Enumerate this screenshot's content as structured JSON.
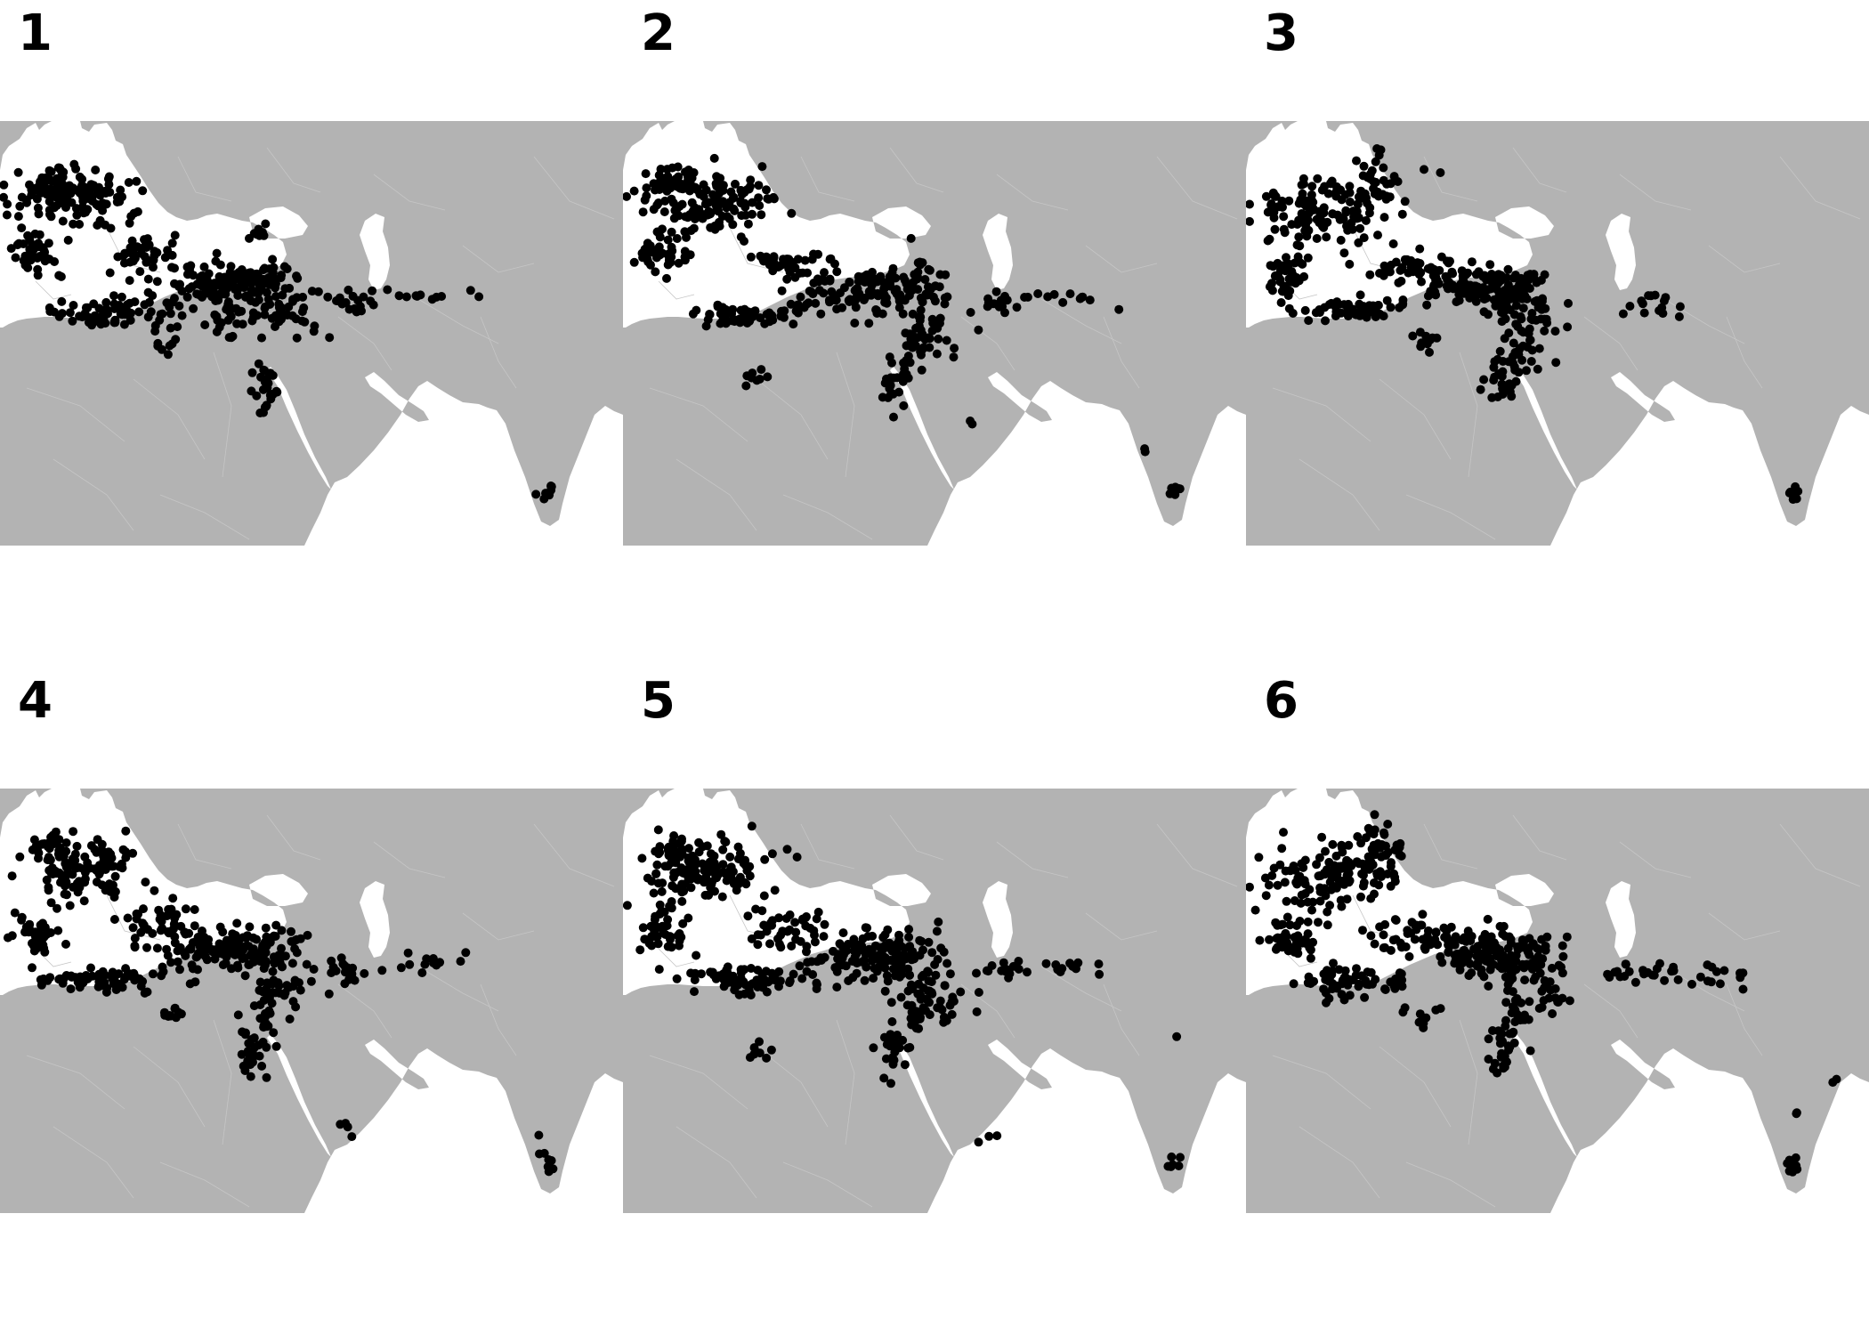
{
  "figure": {
    "land_color": "#b3b3b3",
    "sea_color": "#ffffff",
    "border_color": "#c6c6c6",
    "point_color": "#000000",
    "panels": [
      {
        "label": "1"
      },
      {
        "label": "2"
      },
      {
        "label": "3"
      },
      {
        "label": "4"
      },
      {
        "label": "5"
      },
      {
        "label": "6"
      }
    ]
  }
}
